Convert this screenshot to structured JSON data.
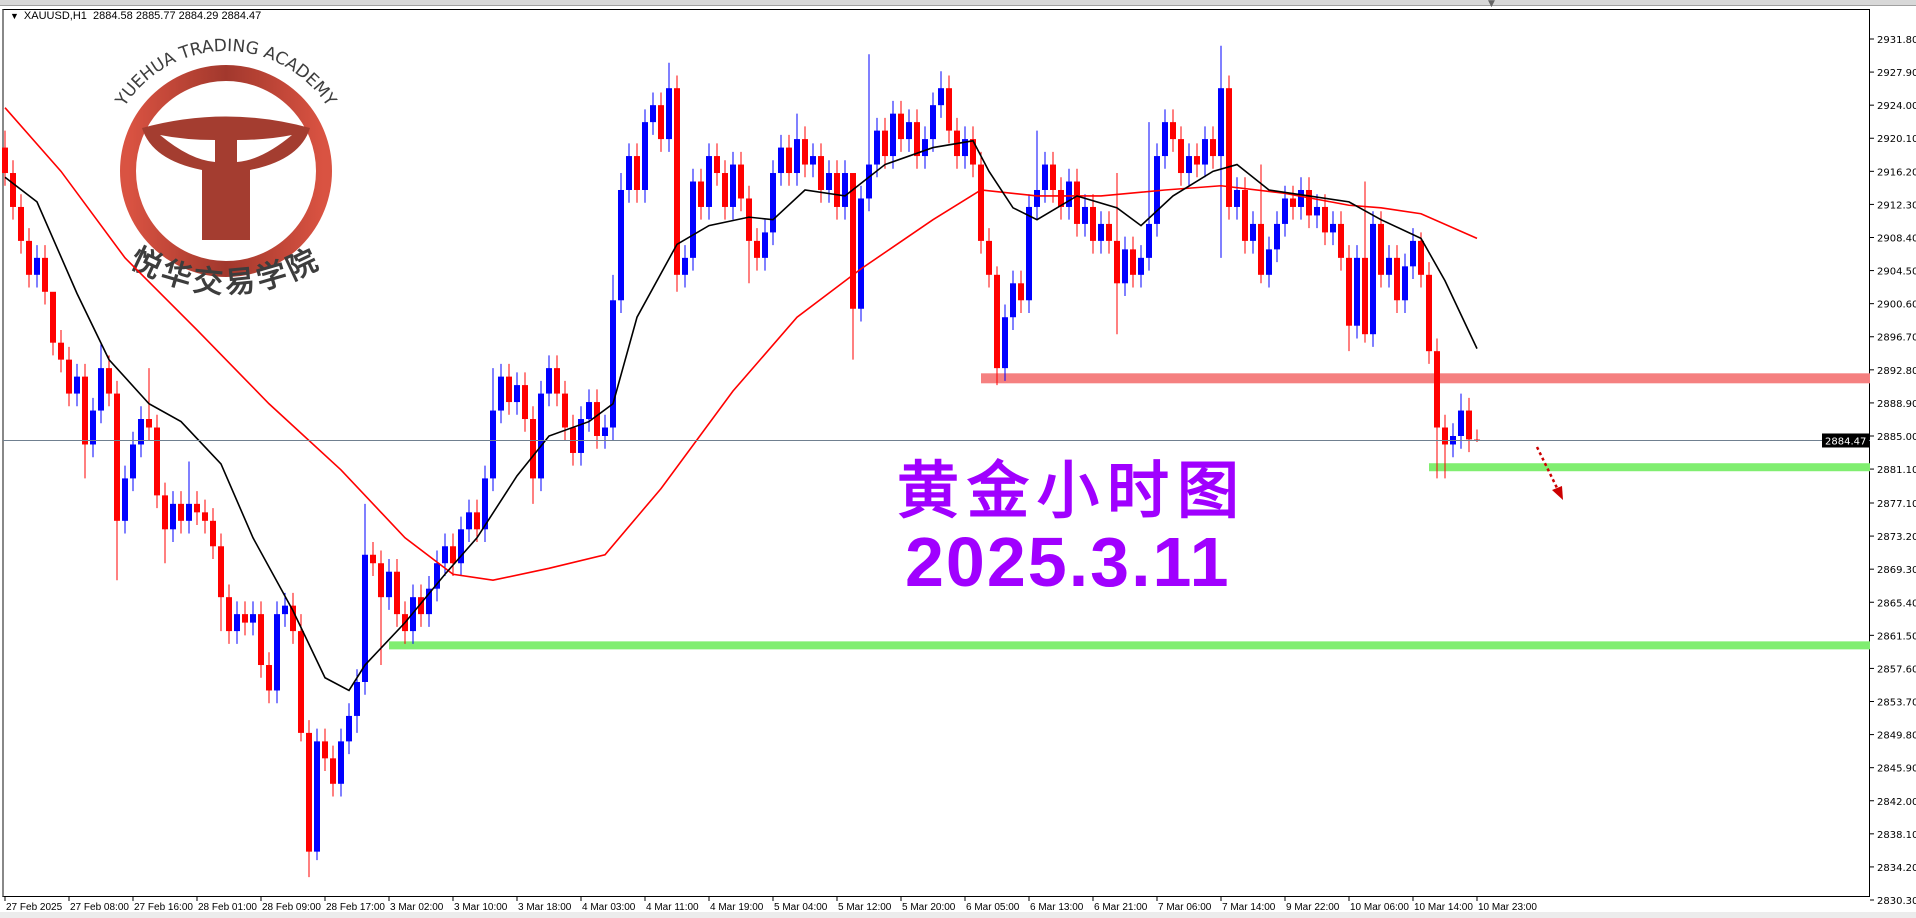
{
  "window": {
    "symbol_header": "XAUUSD,H1",
    "ohlc_header": "2884.58 2885.77 2884.29 2884.47"
  },
  "overlay": {
    "title_cn": "黄金小时图",
    "date": "2025.3.11"
  },
  "logo": {
    "text_en": "YUEHUA TRADING ACADEMY",
    "text_cn": "悦华交易学院",
    "color": "#a03325"
  },
  "colors": {
    "bull": "#0000ff",
    "bear": "#ff0000",
    "ma_fast": "#000000",
    "ma_slow": "#ff0000",
    "resistance": "#f58080",
    "support": "#80ee70",
    "text_overlay": "#a000ff"
  },
  "chart_data": {
    "type": "candlestick",
    "symbol": "XAUUSD",
    "timeframe": "H1",
    "current_price": 2884.47,
    "ylim": [
      2830.3,
      2931.8
    ],
    "y_ticks": [
      2931.8,
      2927.9,
      2924.0,
      2920.1,
      2916.2,
      2912.3,
      2908.4,
      2904.5,
      2900.6,
      2896.7,
      2892.8,
      2888.9,
      2885.0,
      2881.1,
      2877.1,
      2873.2,
      2869.3,
      2865.4,
      2861.5,
      2857.6,
      2853.7,
      2849.8,
      2845.9,
      2842.0,
      2838.1,
      2834.2,
      2830.3
    ],
    "x_tick_labels": [
      "27 Feb 2025",
      "27 Feb 08:00",
      "27 Feb 16:00",
      "28 Feb 01:00",
      "28 Feb 09:00",
      "28 Feb 17:00",
      "3 Mar 02:00",
      "3 Mar 10:00",
      "3 Mar 18:00",
      "4 Mar 03:00",
      "4 Mar 11:00",
      "4 Mar 19:00",
      "5 Mar 04:00",
      "5 Mar 12:00",
      "5 Mar 20:00",
      "6 Mar 05:00",
      "6 Mar 13:00",
      "6 Mar 21:00",
      "7 Mar 06:00",
      "7 Mar 14:00",
      "9 Mar 22:00",
      "10 Mar 06:00",
      "10 Mar 14:00",
      "10 Mar 23:00"
    ],
    "closes": [
      2916,
      2912,
      2908,
      2904,
      2906,
      2902,
      2896,
      2894,
      2890,
      2892,
      2884,
      2888,
      2893,
      2890,
      2875,
      2880,
      2884,
      2887,
      2886,
      2878,
      2874,
      2877,
      2875,
      2877,
      2876,
      2875,
      2872,
      2866,
      2862,
      2864,
      2863,
      2864,
      2858,
      2855,
      2864,
      2865,
      2862,
      2850,
      2836,
      2849,
      2847,
      2844,
      2849,
      2852,
      2856,
      2871,
      2870,
      2866,
      2869,
      2864,
      2862,
      2866,
      2864,
      2867,
      2870,
      2872,
      2870,
      2874,
      2876,
      2874,
      2880,
      2888,
      2892,
      2889,
      2891,
      2887,
      2880,
      2890,
      2893,
      2890,
      2886,
      2883,
      2887,
      2889,
      2885,
      2886,
      2901,
      2914,
      2918,
      2914,
      2922,
      2924,
      2920,
      2926,
      2904,
      2906,
      2915,
      2912,
      2918,
      2916,
      2912,
      2917,
      2913,
      2908,
      2906,
      2909,
      2916,
      2919,
      2916,
      2920,
      2917,
      2918,
      2914,
      2916,
      2912,
      2916,
      2900,
      2913,
      2917,
      2921,
      2918,
      2923,
      2920,
      2922,
      2918,
      2920,
      2924,
      2926,
      2921,
      2918,
      2920,
      2917,
      2908,
      2904,
      2893,
      2899,
      2903,
      2901,
      2912,
      2914,
      2917,
      2914,
      2912,
      2915,
      2910,
      2912,
      2908,
      2910,
      2908,
      2903,
      2907,
      2904,
      2906,
      2910,
      2918,
      2922,
      2920,
      2916,
      2918,
      2917,
      2920,
      2918,
      2926,
      2912,
      2914,
      2908,
      2910,
      2904,
      2907,
      2910,
      2913,
      2912,
      2914,
      2911,
      2912,
      2909,
      2910,
      2906,
      2898,
      2906,
      2897,
      2910,
      2904,
      2906,
      2901,
      2905,
      2908,
      2904,
      2895,
      2886,
      2884,
      2885,
      2888,
      2884.6,
      2884.47
    ],
    "first_open": 2919,
    "last_bar": {
      "open": 2884.58,
      "high": 2885.77,
      "low": 2884.29,
      "close": 2884.47
    },
    "highs_override": {
      "0": 2921,
      "6": 2899,
      "12": 2896,
      "18": 2893,
      "23": 2882,
      "37": 2864,
      "45": 2877,
      "61": 2893,
      "76": 2904,
      "77": 2916,
      "83": 2929,
      "99": 2923,
      "106": 2912,
      "108": 2930,
      "117": 2928,
      "124": 2905,
      "129": 2921,
      "139": 2916,
      "143": 2922,
      "152": 2931,
      "157": 2917,
      "170": 2915,
      "177": 2909,
      "182": 2890
    },
    "lows_override": {
      "10": 2880,
      "14": 2868,
      "20": 2870,
      "27": 2862,
      "37": 2849,
      "38": 2833,
      "39": 2835,
      "44": 2850,
      "47": 2858,
      "66": 2877,
      "84": 2902,
      "93": 2903,
      "106": 2894,
      "124": 2891,
      "139": 2897,
      "152": 2906,
      "157": 2903,
      "168": 2895,
      "170": 2896,
      "179": 2880,
      "180": 2880
    },
    "ma_fast": [
      [
        0,
        2915.5
      ],
      [
        4,
        2912.6
      ],
      [
        9,
        2901.8
      ],
      [
        13,
        2894
      ],
      [
        18,
        2888.8
      ],
      [
        22,
        2886.7
      ],
      [
        27,
        2881.7
      ],
      [
        31,
        2873
      ],
      [
        36,
        2864.4
      ],
      [
        40,
        2856.5
      ],
      [
        43,
        2855
      ],
      [
        45,
        2858
      ],
      [
        50,
        2863
      ],
      [
        55,
        2868.7
      ],
      [
        59,
        2873
      ],
      [
        64,
        2880.3
      ],
      [
        68,
        2885
      ],
      [
        73,
        2886.7
      ],
      [
        76,
        2888.8
      ],
      [
        79,
        2899
      ],
      [
        84,
        2907.6
      ],
      [
        88,
        2909.8
      ],
      [
        93,
        2910.8
      ],
      [
        96,
        2910.5
      ],
      [
        100,
        2914
      ],
      [
        105,
        2913.3
      ],
      [
        110,
        2917
      ],
      [
        116,
        2919
      ],
      [
        121,
        2919.8
      ],
      [
        123,
        2916.2
      ],
      [
        126,
        2911.9
      ],
      [
        129,
        2910.5
      ],
      [
        134,
        2913.3
      ],
      [
        139,
        2911.9
      ],
      [
        142,
        2909.8
      ],
      [
        146,
        2913.3
      ],
      [
        151,
        2916.2
      ],
      [
        154,
        2917
      ],
      [
        158,
        2914
      ],
      [
        163,
        2913.3
      ],
      [
        168,
        2912.6
      ],
      [
        172,
        2910.5
      ],
      [
        177,
        2908.3
      ],
      [
        180,
        2903.3
      ],
      [
        184,
        2895.3
      ]
    ],
    "ma_slow": [
      [
        0,
        2923.7
      ],
      [
        7,
        2916.2
      ],
      [
        15,
        2906
      ],
      [
        24,
        2897.5
      ],
      [
        33,
        2888.8
      ],
      [
        42,
        2881
      ],
      [
        50,
        2873
      ],
      [
        56,
        2868.7
      ],
      [
        61,
        2868
      ],
      [
        68,
        2869.4
      ],
      [
        75,
        2871
      ],
      [
        82,
        2878.8
      ],
      [
        91,
        2890.3
      ],
      [
        99,
        2899
      ],
      [
        107,
        2904.7
      ],
      [
        116,
        2910.5
      ],
      [
        122,
        2914
      ],
      [
        129,
        2913.3
      ],
      [
        137,
        2913.3
      ],
      [
        145,
        2914
      ],
      [
        152,
        2914.5
      ],
      [
        160,
        2913.6
      ],
      [
        168,
        2912.2
      ],
      [
        172,
        2911.9
      ],
      [
        177,
        2911.2
      ],
      [
        184,
        2908.3
      ]
    ],
    "levels": [
      {
        "kind": "resistance",
        "price": 2891.8,
        "from_bar": 122
      },
      {
        "kind": "support",
        "price": 2881.2,
        "from_bar": 178
      },
      {
        "kind": "support",
        "price": 2860.2,
        "from_bar": 48
      }
    ]
  }
}
